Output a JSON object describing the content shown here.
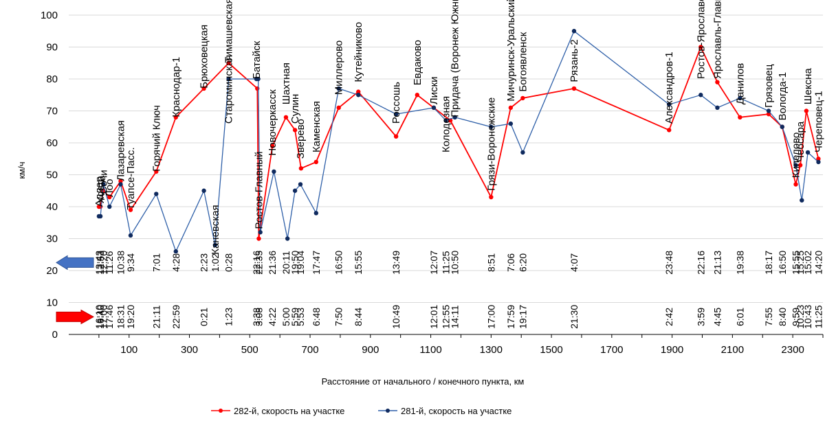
{
  "chart_data": {
    "type": "line",
    "xlabel": "Расстояние от начального / конечного пункта, км",
    "ylabel": "км/ч",
    "xlim": [
      -100,
      2400
    ],
    "ylim": [
      0,
      100
    ],
    "xticks": [
      100,
      300,
      500,
      700,
      900,
      1100,
      1300,
      1500,
      1700,
      1900,
      2100,
      2300
    ],
    "yticks": [
      0,
      10,
      20,
      30,
      40,
      50,
      60,
      70,
      80,
      90,
      100
    ],
    "series": [
      {
        "name": "282-й, скорость на участке",
        "color": "#ff0000",
        "points": [
          [
            0,
            40
          ],
          [
            5,
            40
          ],
          [
            15,
            45
          ],
          [
            35,
            43
          ],
          [
            72,
            48
          ],
          [
            105,
            39
          ],
          [
            190,
            51
          ],
          [
            255,
            68
          ],
          [
            348,
            77
          ],
          [
            430,
            85
          ],
          [
            525,
            77
          ],
          [
            530,
            30
          ],
          [
            575,
            59
          ],
          [
            620,
            68
          ],
          [
            650,
            64
          ],
          [
            670,
            52
          ],
          [
            720,
            54
          ],
          [
            795,
            71
          ],
          [
            860,
            76
          ],
          [
            985,
            62
          ],
          [
            1055,
            75
          ],
          [
            1110,
            71
          ],
          [
            1165,
            67
          ],
          [
            1300,
            43
          ],
          [
            1365,
            71
          ],
          [
            1405,
            74
          ],
          [
            1575,
            77
          ],
          [
            1890,
            64
          ],
          [
            1995,
            90
          ],
          [
            2050,
            79
          ],
          [
            2125,
            68
          ],
          [
            2220,
            69
          ],
          [
            2265,
            65
          ],
          [
            2310,
            47
          ],
          [
            2325,
            53
          ],
          [
            2345,
            70
          ],
          [
            2385,
            55
          ]
        ]
      },
      {
        "name": "281-й, скорость на участке",
        "color": "#2e5fa8",
        "points": [
          [
            0,
            37
          ],
          [
            5,
            37
          ],
          [
            15,
            47
          ],
          [
            35,
            40
          ],
          [
            72,
            47
          ],
          [
            105,
            31
          ],
          [
            190,
            44
          ],
          [
            255,
            26
          ],
          [
            348,
            45
          ],
          [
            385,
            28
          ],
          [
            430,
            80
          ],
          [
            522,
            80
          ],
          [
            528,
            80
          ],
          [
            535,
            32
          ],
          [
            580,
            51
          ],
          [
            625,
            30
          ],
          [
            650,
            45
          ],
          [
            668,
            47
          ],
          [
            720,
            38
          ],
          [
            795,
            77
          ],
          [
            860,
            75
          ],
          [
            985,
            69
          ],
          [
            1110,
            71
          ],
          [
            1150,
            67
          ],
          [
            1180,
            68
          ],
          [
            1300,
            65
          ],
          [
            1365,
            66
          ],
          [
            1405,
            57
          ],
          [
            1575,
            95
          ],
          [
            1890,
            72
          ],
          [
            1995,
            75
          ],
          [
            2050,
            71
          ],
          [
            2125,
            74
          ],
          [
            2220,
            70
          ],
          [
            2265,
            65
          ],
          [
            2310,
            53
          ],
          [
            2330,
            42
          ],
          [
            2350,
            57
          ],
          [
            2385,
            54
          ]
        ]
      }
    ],
    "stations": [
      {
        "name": "Адлер",
        "x": 0,
        "y": 40,
        "t1": "13:43",
        "t2": "16:10"
      },
      {
        "name": "Хоста",
        "x": 5,
        "y": 41,
        "t1": "12:53",
        "t2": "16:40"
      },
      {
        "name": "Сочи",
        "x": 15,
        "y": 44,
        "t1": "12:20",
        "t2": "17:00"
      },
      {
        "name": "Лоо",
        "x": 35,
        "y": 43,
        "t1": "11:26",
        "t2": "17:46"
      },
      {
        "name": "Лазаревская",
        "x": 72,
        "y": 48,
        "t1": "10:38",
        "t2": "18:31"
      },
      {
        "name": "Туапсе-Пасс.",
        "x": 105,
        "y": 39,
        "t1": "9:34",
        "t2": "19:20"
      },
      {
        "name": "Горячий Ключ",
        "x": 190,
        "y": 51,
        "t1": "7:01",
        "t2": "21:11"
      },
      {
        "name": "Краснодар-1",
        "x": 255,
        "y": 68,
        "t1": "4:28",
        "t2": "22:59"
      },
      {
        "name": "Брюховецкая",
        "x": 348,
        "y": 77,
        "t1": "2:23",
        "t2": "0:21"
      },
      {
        "name": "Каневская",
        "x": 385,
        "y": 25,
        "t1": "1:02",
        "t2": ""
      },
      {
        "name": "Тимашевская",
        "x": 430,
        "y": 85,
        "t1": "",
        "t2": ""
      },
      {
        "name": "Староминская",
        "x": 430,
        "y": 66,
        "t1": "0:28",
        "t2": "1:23"
      },
      {
        "name": "Батайск",
        "x": 522,
        "y": 80,
        "t1": "22:16",
        "t2": "3:38"
      },
      {
        "name": "Ростов-Главный",
        "x": 530,
        "y": 33,
        "t1": "22:35",
        "t2": "3:08"
      },
      {
        "name": "Новочеркасск",
        "x": 575,
        "y": 56,
        "t1": "21:36",
        "t2": "4:22"
      },
      {
        "name": "Шахтная",
        "x": 620,
        "y": 72,
        "t1": "20:11",
        "t2": "5:00"
      },
      {
        "name": "Сулин",
        "x": 650,
        "y": 66,
        "t1": "19:50",
        "t2": "5:59"
      },
      {
        "name": "Зверево",
        "x": 668,
        "y": 55,
        "t1": "19:04",
        "t2": "5:53"
      },
      {
        "name": "Каменская",
        "x": 720,
        "y": 57,
        "t1": "17:47",
        "t2": "6:48"
      },
      {
        "name": "Миллерово",
        "x": 795,
        "y": 75,
        "t1": "16:50",
        "t2": "7:50"
      },
      {
        "name": "Кутейниково",
        "x": 860,
        "y": 79,
        "t1": "15:55",
        "t2": "8:44"
      },
      {
        "name": "Россошь",
        "x": 985,
        "y": 66,
        "t1": "13:49",
        "t2": "10:49"
      },
      {
        "name": "Евдаково",
        "x": 1055,
        "y": 78,
        "t1": "",
        "t2": ""
      },
      {
        "name": "Лиски",
        "x": 1110,
        "y": 72,
        "t1": "12:07",
        "t2": "12:01"
      },
      {
        "name": "Колодезная",
        "x": 1150,
        "y": 57,
        "t1": "11:25",
        "t2": "12:55"
      },
      {
        "name": "Придача (Воронеж Южный)",
        "x": 1180,
        "y": 68,
        "t1": "10:50",
        "t2": "14:11"
      },
      {
        "name": "Грязи-Воронежские",
        "x": 1300,
        "y": 45,
        "t1": "8:51",
        "t2": "17:00"
      },
      {
        "name": "Мичуринск-Уральский",
        "x": 1365,
        "y": 73,
        "t1": "7:06",
        "t2": "17:59"
      },
      {
        "name": "Богоявленск",
        "x": 1405,
        "y": 76,
        "t1": "6:20",
        "t2": "19:17"
      },
      {
        "name": "Рязань-2",
        "x": 1575,
        "y": 79,
        "t1": "4:07",
        "t2": "21:30"
      },
      {
        "name": "Александров-1",
        "x": 1890,
        "y": 66,
        "t1": "23:48",
        "t2": "2:42"
      },
      {
        "name": "Ростов-Ярославский",
        "x": 1995,
        "y": 80,
        "t1": "22:16",
        "t2": "3:59"
      },
      {
        "name": "Ярославль-Главный",
        "x": 2050,
        "y": 80,
        "t1": "21:13",
        "t2": "4:45"
      },
      {
        "name": "Данилов",
        "x": 2125,
        "y": 72,
        "t1": "19:38",
        "t2": "6:01"
      },
      {
        "name": "Грязовец",
        "x": 2220,
        "y": 71,
        "t1": "18:17",
        "t2": "7:55"
      },
      {
        "name": "Вологда-1",
        "x": 2265,
        "y": 67,
        "t1": "16:50",
        "t2": "8:40"
      },
      {
        "name": "Кипелово",
        "x": 2310,
        "y": 49,
        "t1": "15:55",
        "t2": "9:59"
      },
      {
        "name": "Чебсара",
        "x": 2325,
        "y": 54,
        "t1": "15:25",
        "t2": "10:23"
      },
      {
        "name": "Шексна",
        "x": 2350,
        "y": 72,
        "t1": "15:02",
        "t2": "10:43"
      },
      {
        "name": "Череповец-1",
        "x": 2385,
        "y": 57,
        "t1": "14:20",
        "t2": "11:25"
      }
    ],
    "arrows": [
      {
        "name": "281-й",
        "y": 22.5,
        "direction": "left",
        "color": "#4472c4"
      },
      {
        "name": "282-й",
        "y": 5.5,
        "direction": "right",
        "color": "#ff0000"
      }
    ],
    "legend_position": "bottom"
  }
}
